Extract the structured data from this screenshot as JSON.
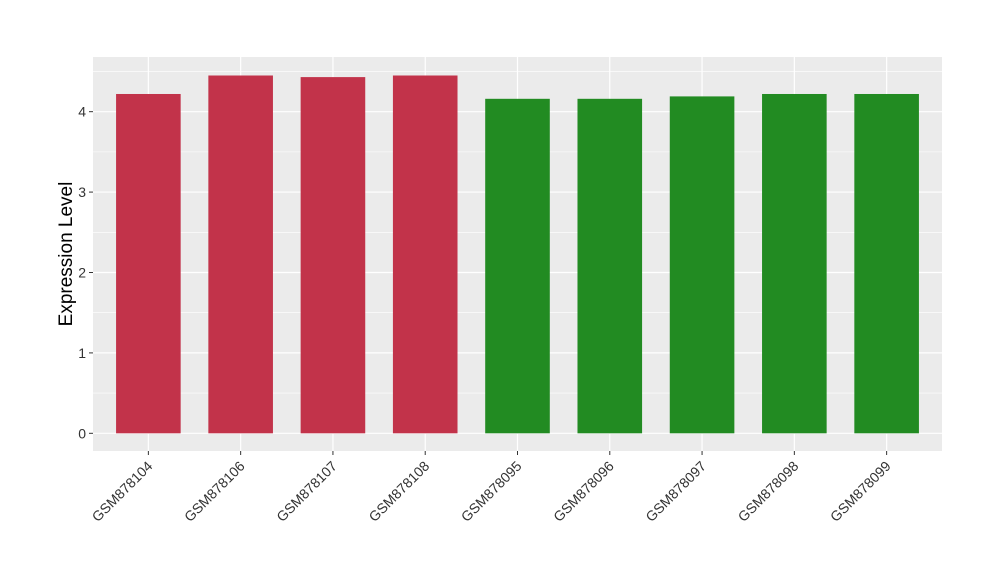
{
  "chart_data": {
    "type": "bar",
    "title": "",
    "xlabel": "",
    "ylabel": "Expression Level",
    "categories": [
      "GSM878104",
      "GSM878106",
      "GSM878107",
      "GSM878108",
      "GSM878095",
      "GSM878096",
      "GSM878097",
      "GSM878098",
      "GSM878099"
    ],
    "values": [
      4.22,
      4.45,
      4.43,
      4.45,
      4.16,
      4.16,
      4.19,
      4.22,
      4.22
    ],
    "colors": [
      "#C2334A",
      "#C2334A",
      "#C2334A",
      "#C2334A",
      "#228B22",
      "#228B22",
      "#228B22",
      "#228B22",
      "#228B22"
    ],
    "ylim": [
      -0.22,
      4.68
    ],
    "yticks": [
      0,
      1,
      2,
      3,
      4
    ],
    "grid": true,
    "panel_background": "#EBEBEB"
  }
}
